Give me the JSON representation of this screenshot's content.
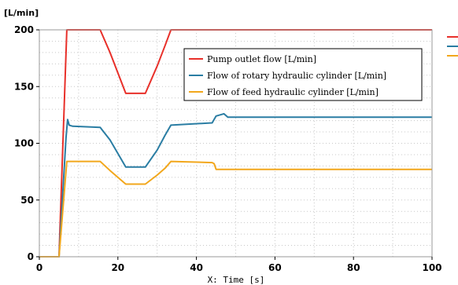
{
  "chart_data": {
    "type": "line",
    "ylabel": "[L/min]",
    "xlabel": "X: Time [s]",
    "xlim": [
      0,
      100
    ],
    "ylim": [
      0,
      200
    ],
    "xticks": [
      "0",
      "20",
      "40",
      "60",
      "80",
      "100"
    ],
    "yticks": [
      "0",
      "50",
      "100",
      "150",
      "200"
    ],
    "grid": true,
    "legend_position": "top-right",
    "series": [
      {
        "name": "Pump outlet flow [L/min]",
        "color": "#e8302a",
        "x": [
          0,
          5,
          7,
          15.5,
          18,
          20,
          22,
          27,
          30,
          32,
          33.5,
          100
        ],
        "y": [
          0,
          0,
          200,
          200,
          180,
          162,
          144,
          144,
          168,
          186,
          200,
          200
        ]
      },
      {
        "name": "Flow of rotary hydraulic cylinder [L/min]",
        "color": "#2a7da3",
        "x": [
          0,
          5,
          6.8,
          7.2,
          7.6,
          8.5,
          15.5,
          18,
          20,
          22,
          27,
          30,
          32,
          33.5,
          44,
          45,
          47,
          48,
          100
        ],
        "y": [
          0,
          0,
          105,
          121,
          116,
          115,
          114,
          103,
          91,
          79,
          79,
          94,
          107,
          116,
          118,
          124,
          126,
          123,
          123
        ]
      },
      {
        "name": "Flow of feed hydraulic cylinder [L/min]",
        "color": "#f2a71c",
        "x": [
          0,
          5,
          7,
          15.5,
          18,
          20,
          22,
          27,
          30,
          32,
          33.5,
          44,
          44.5,
          45,
          100
        ],
        "y": [
          0,
          0,
          84,
          84,
          76,
          70,
          64,
          64,
          72,
          78,
          84,
          83,
          82,
          77,
          77
        ]
      }
    ]
  }
}
